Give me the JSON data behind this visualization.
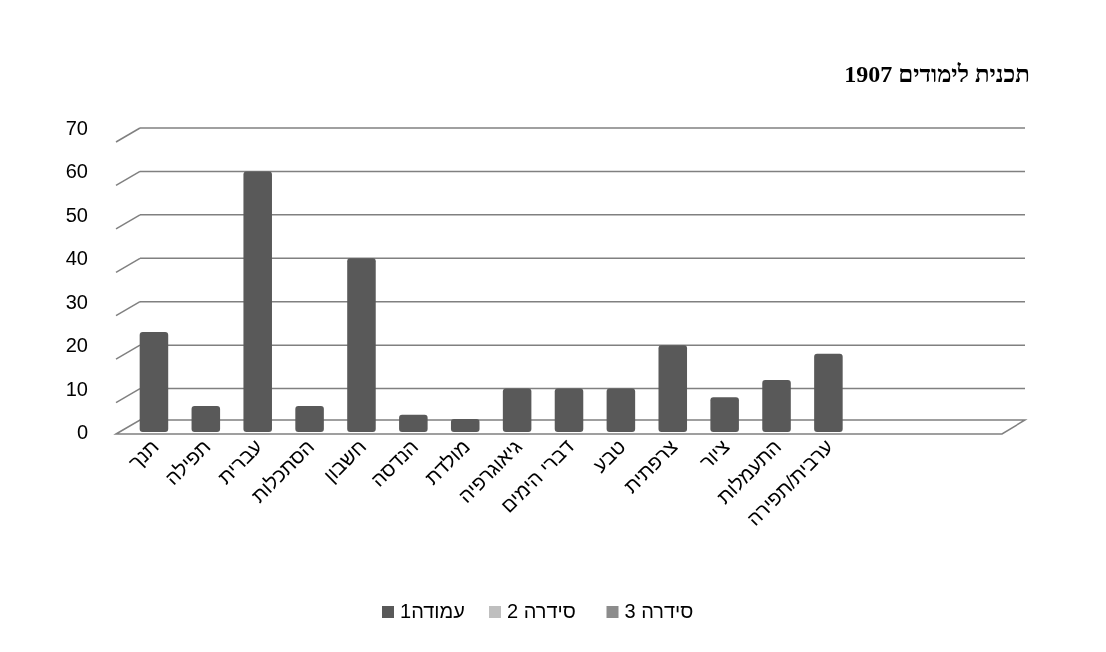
{
  "chart_data": {
    "type": "bar",
    "title": "תכנית לימודים 1907",
    "categories": [
      "תנך",
      "תפילה",
      "עברית",
      "הסתכלות",
      "חשבון",
      "הנדסה",
      "מולדת",
      "גיאוגרפיה",
      "דברי הימים",
      "טבע",
      "צרפתית",
      "ציור",
      "התעמלות",
      "ערבית/תפירה",
      null,
      null,
      null
    ],
    "series": [
      {
        "name": "עמודה1",
        "color": "#595959",
        "values": [
          23,
          6,
          60,
          6,
          40,
          4,
          3,
          10,
          10,
          10,
          20,
          8,
          12,
          18,
          null,
          null,
          null
        ]
      },
      {
        "name": "סידרה 2",
        "color": "#bfbfbf",
        "values": [
          null,
          null,
          null,
          null,
          null,
          null,
          null,
          null,
          null,
          null,
          null,
          null,
          null,
          null,
          null,
          null,
          null
        ]
      },
      {
        "name": "סידרה 3",
        "color": "#8c8c8c",
        "values": [
          null,
          null,
          null,
          null,
          null,
          null,
          null,
          null,
          null,
          null,
          null,
          null,
          null,
          null,
          null,
          null,
          null
        ]
      }
    ],
    "ylim": [
      0,
      70
    ],
    "yticks": [
      0,
      10,
      20,
      30,
      40,
      50,
      60,
      70
    ],
    "grid": "y",
    "legend": "bottom"
  }
}
